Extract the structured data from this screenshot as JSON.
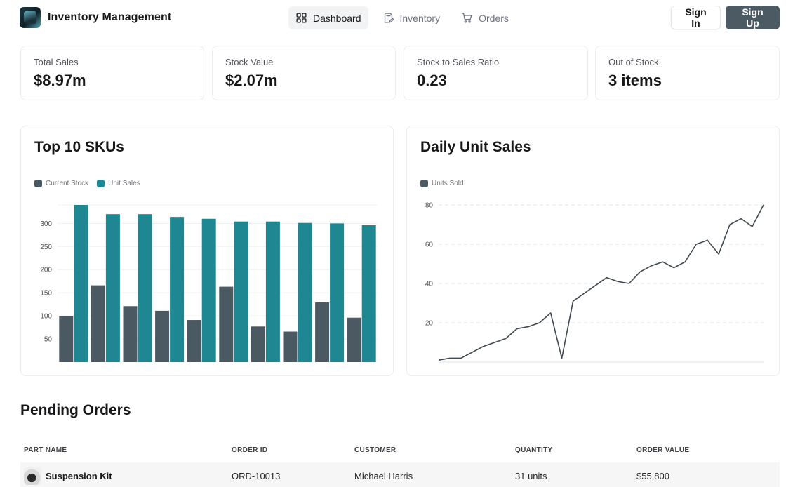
{
  "app": {
    "title": "Inventory Management"
  },
  "nav": [
    {
      "label": "Dashboard",
      "icon": "grid-icon",
      "active": true
    },
    {
      "label": "Inventory",
      "icon": "edit-list-icon",
      "active": false
    },
    {
      "label": "Orders",
      "icon": "cart-icon",
      "active": false
    }
  ],
  "auth": {
    "sign_in": "Sign In",
    "sign_up": "Sign Up"
  },
  "kpis": [
    {
      "label": "Total Sales",
      "value": "$8.97m"
    },
    {
      "label": "Stock Value",
      "value": "$2.07m"
    },
    {
      "label": "Stock to Sales Ratio",
      "value": "0.23"
    },
    {
      "label": "Out of Stock",
      "value": "3 items"
    }
  ],
  "colors": {
    "current_stock": "#4b5963",
    "unit_sales": "#1f8792",
    "line": "#3f4a50",
    "primary_button": "#4b5a63"
  },
  "chart_data": [
    {
      "type": "bar",
      "title": "Top 10 SKUs",
      "legend": "top-left",
      "grid": true,
      "ylim": [
        0,
        340
      ],
      "yticks": [
        50,
        100,
        150,
        200,
        250,
        300
      ],
      "categories": [
        "",
        "",
        "",
        "",
        "",
        "",
        "",
        "",
        "",
        ""
      ],
      "series": [
        {
          "name": "Current Stock",
          "values": [
            100,
            166,
            121,
            111,
            91,
            163,
            77,
            66,
            129,
            96
          ]
        },
        {
          "name": "Unit Sales",
          "values": [
            340,
            320,
            320,
            314,
            310,
            304,
            304,
            301,
            300,
            296
          ]
        }
      ]
    },
    {
      "type": "line",
      "title": "Daily Unit Sales",
      "legend": "top-left",
      "grid": true,
      "ylim": [
        0,
        80
      ],
      "yticks": [
        20,
        40,
        60,
        80
      ],
      "series": [
        {
          "name": "Units Sold",
          "values": [
            1,
            2,
            2,
            5,
            8,
            10,
            12,
            17,
            18,
            20,
            25,
            2,
            31,
            35,
            39,
            43,
            41,
            40,
            46,
            49,
            51,
            48,
            51,
            60,
            62,
            55,
            70,
            73,
            69,
            80
          ]
        }
      ]
    }
  ],
  "orders": {
    "title": "Pending Orders",
    "columns": [
      "PART NAME",
      "ORDER ID",
      "CUSTOMER",
      "QUANTITY",
      "ORDER VALUE"
    ],
    "rows": [
      {
        "part": "Suspension Kit",
        "order_id": "ORD-10013",
        "customer": "Michael Harris",
        "quantity": "31 units",
        "value": "$55,800"
      }
    ]
  }
}
